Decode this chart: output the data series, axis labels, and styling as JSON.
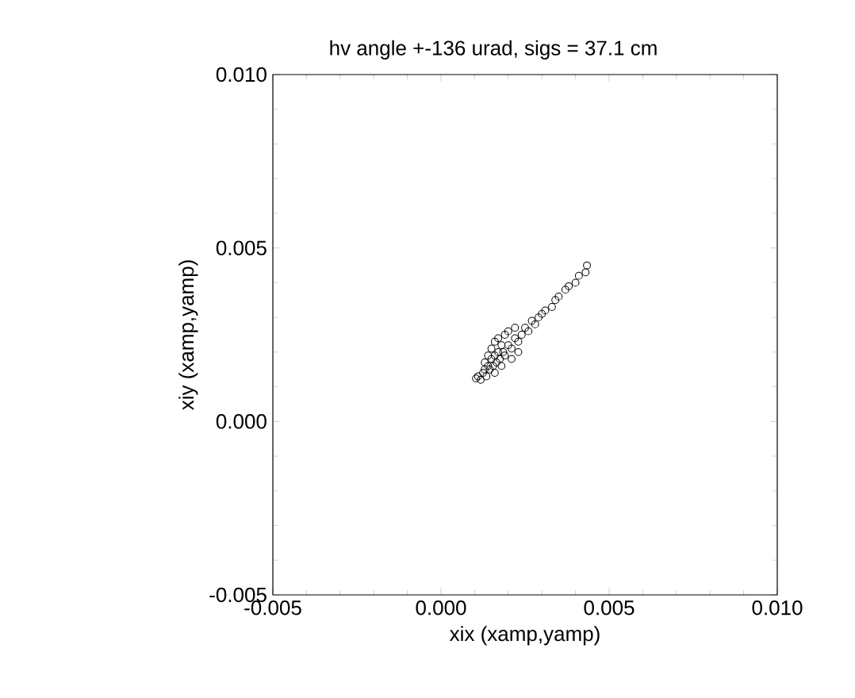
{
  "chart_data": {
    "type": "scatter",
    "title": "hv angle +-136 urad, sigs = 37.1 cm",
    "xlabel": "xix (xamp,yamp)",
    "ylabel": "xiy (xamp,yamp)",
    "xlim": [
      -0.005,
      0.01
    ],
    "ylim": [
      -0.005,
      0.01
    ],
    "xticks": [
      {
        "value": -0.005,
        "label": "-0.005"
      },
      {
        "value": 0,
        "label": "0.000"
      },
      {
        "value": 0.005,
        "label": "0.005"
      },
      {
        "value": 0.01,
        "label": "0.010"
      }
    ],
    "yticks": [
      {
        "value": -0.005,
        "label": "-0.005"
      },
      {
        "value": 0,
        "label": "0.000"
      },
      {
        "value": 0.005,
        "label": "0.005"
      },
      {
        "value": 0.01,
        "label": "0.010"
      }
    ],
    "marker": "circle",
    "grid": false,
    "series": [
      {
        "color": "#000000",
        "x": [
          0.00104,
          0.0011,
          0.00118,
          0.00125,
          0.0013,
          0.00135,
          0.0014,
          0.0013,
          0.00145,
          0.0015,
          0.00155,
          0.0016,
          0.0015,
          0.0014,
          0.00165,
          0.0017,
          0.0016,
          0.00175,
          0.0018,
          0.00185,
          0.0017,
          0.0019,
          0.002,
          0.0019,
          0.0021,
          0.0022,
          0.002,
          0.0023,
          0.0024,
          0.0022,
          0.0025,
          0.0026,
          0.0027,
          0.0028,
          0.0029,
          0.003,
          0.0031,
          0.0033,
          0.0034,
          0.0035,
          0.0037,
          0.0038,
          0.004,
          0.0041,
          0.0043,
          0.00434,
          0.0016,
          0.0018,
          0.0021,
          0.0023
        ],
        "values": [
          0.00124,
          0.0013,
          0.0012,
          0.0014,
          0.0015,
          0.0013,
          0.0016,
          0.0017,
          0.0015,
          0.0018,
          0.0016,
          0.0019,
          0.0021,
          0.0019,
          0.0017,
          0.002,
          0.0023,
          0.0018,
          0.0022,
          0.002,
          0.0024,
          0.0019,
          0.0022,
          0.0025,
          0.0021,
          0.0024,
          0.0026,
          0.0023,
          0.0025,
          0.0027,
          0.0027,
          0.0026,
          0.0029,
          0.0028,
          0.003,
          0.0031,
          0.0032,
          0.0033,
          0.0035,
          0.0036,
          0.0038,
          0.0039,
          0.004,
          0.0042,
          0.0043,
          0.0045,
          0.0014,
          0.0016,
          0.0018,
          0.002
        ]
      }
    ]
  }
}
